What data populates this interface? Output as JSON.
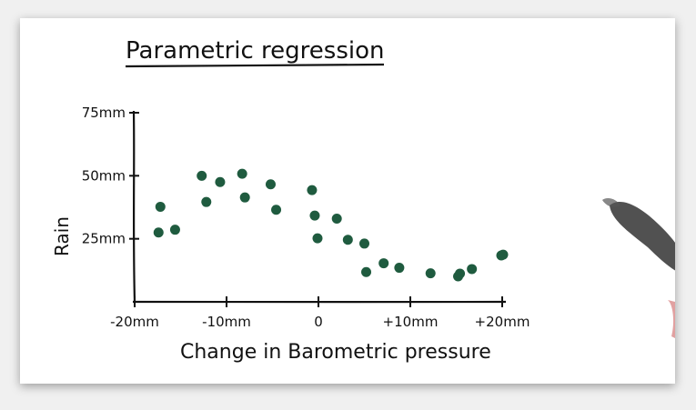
{
  "chart_data": {
    "type": "scatter",
    "title": "Parametric regression",
    "xlabel": "Change in Barometric pressure",
    "ylabel": "Rain",
    "xlim": [
      -20,
      20
    ],
    "ylim": [
      0,
      75
    ],
    "x_ticks": [
      {
        "value": -20,
        "label": "-20mm"
      },
      {
        "value": -10,
        "label": "-10mm"
      },
      {
        "value": 0,
        "label": "0"
      },
      {
        "value": 10,
        "label": "+10mm"
      },
      {
        "value": 20,
        "label": "+20mm"
      }
    ],
    "y_ticks": [
      {
        "value": 25,
        "label": "25mm"
      },
      {
        "value": 50,
        "label": "50mm"
      },
      {
        "value": 75,
        "label": "75mm"
      }
    ],
    "grid": false,
    "legend": "none",
    "point_color": "#1f5b3f",
    "series": [
      {
        "x": [
          -17.4,
          -17.2,
          -15.6,
          -12.7,
          -12.2,
          -10.7,
          -8.3,
          -8.0,
          -5.2,
          -4.6,
          -0.7,
          -0.4,
          -0.1,
          2.0,
          3.2,
          5.0,
          5.2,
          7.1,
          8.8,
          12.2,
          15.2,
          15.4,
          16.7,
          19.9,
          20.1
        ],
        "y": [
          27.5,
          37.7,
          28.6,
          50.0,
          39.6,
          47.5,
          50.8,
          41.4,
          46.6,
          36.5,
          44.3,
          34.2,
          25.2,
          33.0,
          24.6,
          23.1,
          11.8,
          15.3,
          13.5,
          11.3,
          10.1,
          11.2,
          13.0,
          18.4,
          18.7
        ]
      }
    ]
  }
}
